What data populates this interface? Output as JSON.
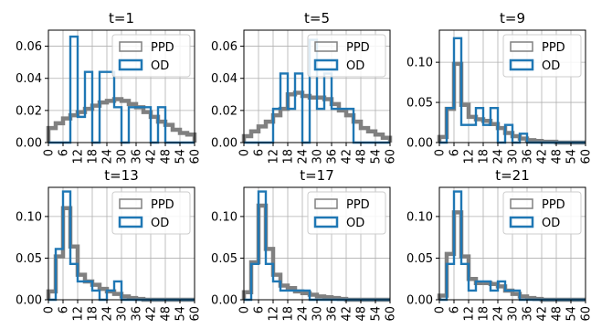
{
  "colors": {
    "ppd": "#808080",
    "od": "#1f77b4",
    "grid": "#b0b0b0"
  },
  "chart_data": [
    {
      "type": "bar",
      "title": "t=1",
      "xlim": [
        0,
        60
      ],
      "ylim": [
        0,
        0.07
      ],
      "xticks": [
        "0",
        "6",
        "12",
        "18",
        "24",
        "30",
        "36",
        "42",
        "48",
        "54",
        "60"
      ],
      "yticks": [
        "0.00",
        "0.02",
        "0.04",
        "0.06"
      ],
      "ytick_values": [
        0,
        0.02,
        0.04,
        0.06
      ],
      "grid": true,
      "legend": "top-right",
      "bin_edges": [
        0,
        3,
        6,
        9,
        12,
        15,
        18,
        21,
        24,
        27,
        30,
        33,
        36,
        39,
        42,
        45,
        48,
        51,
        54,
        57,
        60
      ],
      "series": [
        {
          "name": "PPD",
          "style": "step",
          "values": [
            0.009,
            0.012,
            0.015,
            0.017,
            0.019,
            0.021,
            0.023,
            0.025,
            0.026,
            0.027,
            0.026,
            0.024,
            0.022,
            0.019,
            0.016,
            0.013,
            0.011,
            0.008,
            0.006,
            0.005
          ]
        },
        {
          "name": "OD",
          "style": "step",
          "values": [
            0,
            0,
            0,
            0.066,
            0.016,
            0.044,
            0,
            0.044,
            0.044,
            0.022,
            0,
            0.022,
            0.022,
            0.022,
            0,
            0.022,
            0,
            0,
            0,
            0
          ]
        }
      ]
    },
    {
      "type": "bar",
      "title": "t=5",
      "xlim": [
        0,
        60
      ],
      "ylim": [
        0,
        0.07
      ],
      "xticks": [
        "0",
        "6",
        "12",
        "18",
        "24",
        "30",
        "36",
        "42",
        "48",
        "54",
        "60"
      ],
      "yticks": [
        "0.00",
        "0.02",
        "0.04",
        "0.06"
      ],
      "ytick_values": [
        0,
        0.02,
        0.04,
        0.06
      ],
      "grid": true,
      "legend": "top-right",
      "bin_edges": [
        0,
        3,
        6,
        9,
        12,
        15,
        18,
        21,
        24,
        27,
        30,
        33,
        36,
        39,
        42,
        45,
        48,
        51,
        54,
        57,
        60
      ],
      "series": [
        {
          "name": "PPD",
          "style": "step",
          "values": [
            0.004,
            0.007,
            0.01,
            0.013,
            0.017,
            0.021,
            0.03,
            0.031,
            0.029,
            0.028,
            0.028,
            0.027,
            0.024,
            0.02,
            0.017,
            0.013,
            0.009,
            0.007,
            0.005,
            0.003
          ]
        },
        {
          "name": "OD",
          "style": "step",
          "values": [
            0,
            0,
            0,
            0,
            0.021,
            0.043,
            0.021,
            0.043,
            0,
            0.064,
            0.021,
            0.043,
            0.021,
            0.021,
            0.021,
            0,
            0,
            0,
            0,
            0
          ]
        }
      ]
    },
    {
      "type": "bar",
      "title": "t=9",
      "xlim": [
        0,
        60
      ],
      "ylim": [
        0,
        0.14
      ],
      "xticks": [
        "0",
        "6",
        "12",
        "18",
        "24",
        "30",
        "36",
        "42",
        "48",
        "54",
        "60"
      ],
      "yticks": [
        "0.00",
        "0.05",
        "0.10"
      ],
      "ytick_values": [
        0,
        0.05,
        0.1
      ],
      "grid": true,
      "legend": "top-right",
      "bin_edges": [
        0,
        3,
        6,
        9,
        12,
        15,
        18,
        21,
        24,
        27,
        30,
        33,
        36,
        39,
        42,
        45,
        48,
        51,
        54,
        57,
        60
      ],
      "series": [
        {
          "name": "PPD",
          "style": "step",
          "values": [
            0.007,
            0.042,
            0.098,
            0.047,
            0.032,
            0.029,
            0.027,
            0.023,
            0.018,
            0.012,
            0.008,
            0.005,
            0.003,
            0.002,
            0.001,
            0.001,
            0,
            0,
            0,
            0
          ]
        },
        {
          "name": "OD",
          "style": "step",
          "values": [
            0,
            0.043,
            0.13,
            0.022,
            0.022,
            0.043,
            0.022,
            0.043,
            0,
            0.022,
            0,
            0.011,
            0,
            0,
            0,
            0,
            0,
            0,
            0,
            0
          ]
        }
      ]
    },
    {
      "type": "bar",
      "title": "t=13",
      "xlim": [
        0,
        60
      ],
      "ylim": [
        0,
        0.135
      ],
      "xticks": [
        "0",
        "6",
        "12",
        "18",
        "24",
        "30",
        "36",
        "42",
        "48",
        "54",
        "60"
      ],
      "yticks": [
        "0.00",
        "0.05",
        "0.10"
      ],
      "ytick_values": [
        0,
        0.05,
        0.1
      ],
      "grid": true,
      "legend": "top-right",
      "bin_edges": [
        0,
        3,
        6,
        9,
        12,
        15,
        18,
        21,
        24,
        27,
        30,
        33,
        36,
        39,
        42,
        45,
        48,
        51,
        54,
        57,
        60
      ],
      "series": [
        {
          "name": "PPD",
          "style": "step",
          "values": [
            0.01,
            0.052,
            0.11,
            0.064,
            0.03,
            0.022,
            0.018,
            0.013,
            0.01,
            0.007,
            0.004,
            0.002,
            0.001,
            0,
            0,
            0,
            0,
            0,
            0,
            0
          ]
        },
        {
          "name": "OD",
          "style": "step",
          "values": [
            0,
            0.061,
            0.13,
            0.043,
            0.022,
            0.022,
            0.011,
            0,
            0.011,
            0.022,
            0,
            0,
            0,
            0,
            0,
            0,
            0,
            0,
            0,
            0
          ]
        }
      ]
    },
    {
      "type": "bar",
      "title": "t=17",
      "xlim": [
        0,
        60
      ],
      "ylim": [
        0,
        0.135
      ],
      "xticks": [
        "0",
        "6",
        "12",
        "18",
        "24",
        "30",
        "36",
        "42",
        "48",
        "54",
        "60"
      ],
      "yticks": [
        "0.00",
        "0.05",
        "0.10"
      ],
      "ytick_values": [
        0,
        0.05,
        0.1
      ],
      "grid": true,
      "legend": "top-right",
      "bin_edges": [
        0,
        3,
        6,
        9,
        12,
        15,
        18,
        21,
        24,
        27,
        30,
        33,
        36,
        39,
        42,
        45,
        48,
        51,
        54,
        57,
        60
      ],
      "series": [
        {
          "name": "PPD",
          "style": "step",
          "values": [
            0.009,
            0.045,
            0.113,
            0.061,
            0.03,
            0.017,
            0.014,
            0.01,
            0.008,
            0.006,
            0.004,
            0.003,
            0.002,
            0.001,
            0,
            0,
            0,
            0,
            0,
            0
          ]
        },
        {
          "name": "OD",
          "style": "step",
          "values": [
            0,
            0.043,
            0.13,
            0.043,
            0.022,
            0.011,
            0.011,
            0.011,
            0.011,
            0,
            0,
            0,
            0,
            0,
            0,
            0,
            0,
            0,
            0,
            0
          ]
        }
      ]
    },
    {
      "type": "bar",
      "title": "t=21",
      "xlim": [
        0,
        60
      ],
      "ylim": [
        0,
        0.135
      ],
      "xticks": [
        "0",
        "6",
        "12",
        "18",
        "24",
        "30",
        "36",
        "42",
        "48",
        "54",
        "60"
      ],
      "yticks": [
        "0.00",
        "0.05",
        "0.10"
      ],
      "ytick_values": [
        0,
        0.05,
        0.1
      ],
      "grid": true,
      "legend": "top-right",
      "bin_edges": [
        0,
        3,
        6,
        9,
        12,
        15,
        18,
        21,
        24,
        27,
        30,
        33,
        36,
        39,
        42,
        45,
        48,
        51,
        54,
        57,
        60
      ],
      "series": [
        {
          "name": "PPD",
          "style": "step",
          "values": [
            0.005,
            0.055,
            0.105,
            0.052,
            0.025,
            0.02,
            0.02,
            0.019,
            0.016,
            0.011,
            0.007,
            0.004,
            0.002,
            0.001,
            0,
            0,
            0,
            0,
            0,
            0
          ]
        },
        {
          "name": "OD",
          "style": "step",
          "values": [
            0,
            0.043,
            0.13,
            0.043,
            0.011,
            0.022,
            0.022,
            0.011,
            0.022,
            0.011,
            0.011,
            0,
            0,
            0,
            0,
            0,
            0,
            0,
            0,
            0
          ]
        }
      ]
    }
  ]
}
